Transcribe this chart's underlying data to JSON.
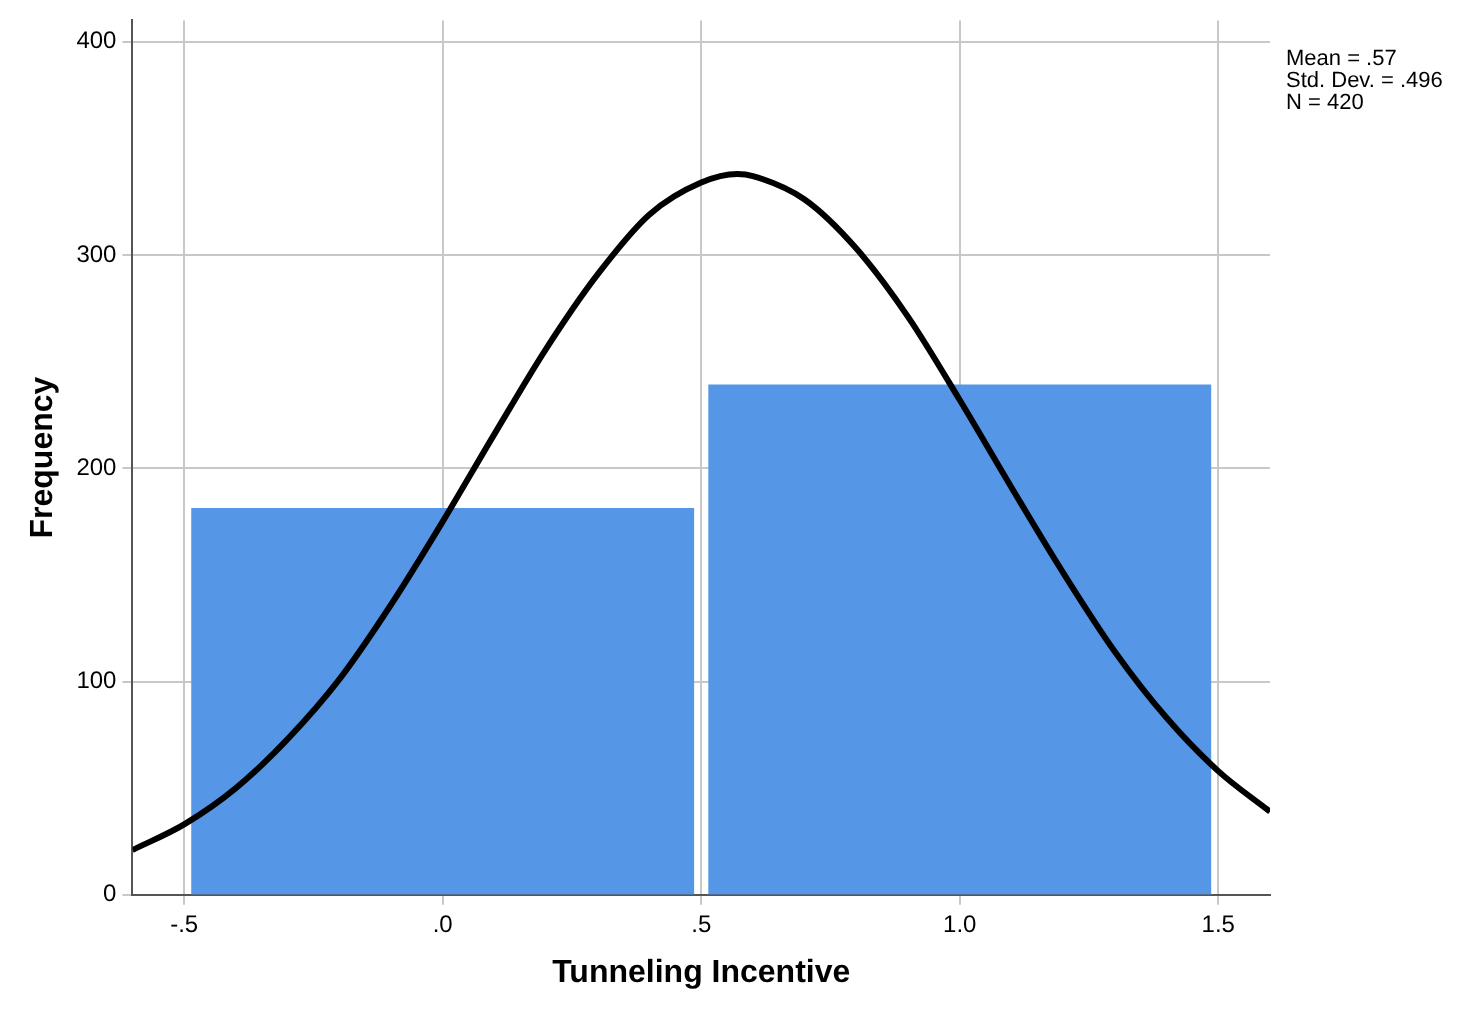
{
  "chart_data": {
    "type": "histogram",
    "xlabel": "Tunneling Incentive",
    "ylabel": "Frequency",
    "bins": [
      -0.5,
      0.5,
      1.5
    ],
    "values": [
      181,
      239
    ],
    "color": "#5596e6",
    "series": [
      {
        "type": "line",
        "color": "#000000",
        "x": [
          -0.6,
          -0.5,
          -0.4,
          -0.3,
          -0.2,
          -0.1,
          0,
          0.1,
          0.2,
          0.3,
          0.4,
          0.5,
          0.57,
          0.6,
          0.7,
          0.8,
          0.9,
          1.0,
          1.1,
          1.2,
          1.3,
          1.4,
          1.5,
          1.6
        ],
        "values": [
          21,
          33,
          50,
          73,
          101,
          136,
          175,
          216,
          256,
          291,
          319,
          334,
          338,
          337,
          326,
          303,
          271,
          232,
          191,
          151,
          114,
          83,
          58,
          39
        ]
      }
    ],
    "xlim": [
      -0.6,
      1.6
    ],
    "xticks": [
      {
        "value": -0.5,
        "label": "-.5"
      },
      {
        "value": 0,
        "label": ".0"
      },
      {
        "value": 0.5,
        "label": ".5"
      },
      {
        "value": 1,
        "label": "1.0"
      },
      {
        "value": 1.5,
        "label": "1.5"
      }
    ],
    "ylim": [
      0,
      410
    ],
    "yticks": [
      0,
      100,
      200,
      300,
      400
    ],
    "grid": true,
    "legend": false,
    "marker": "none",
    "line_style": "solid",
    "annotations": [
      "Mean = .57",
      "Std. Dev. = .496",
      "N = 420"
    ]
  }
}
